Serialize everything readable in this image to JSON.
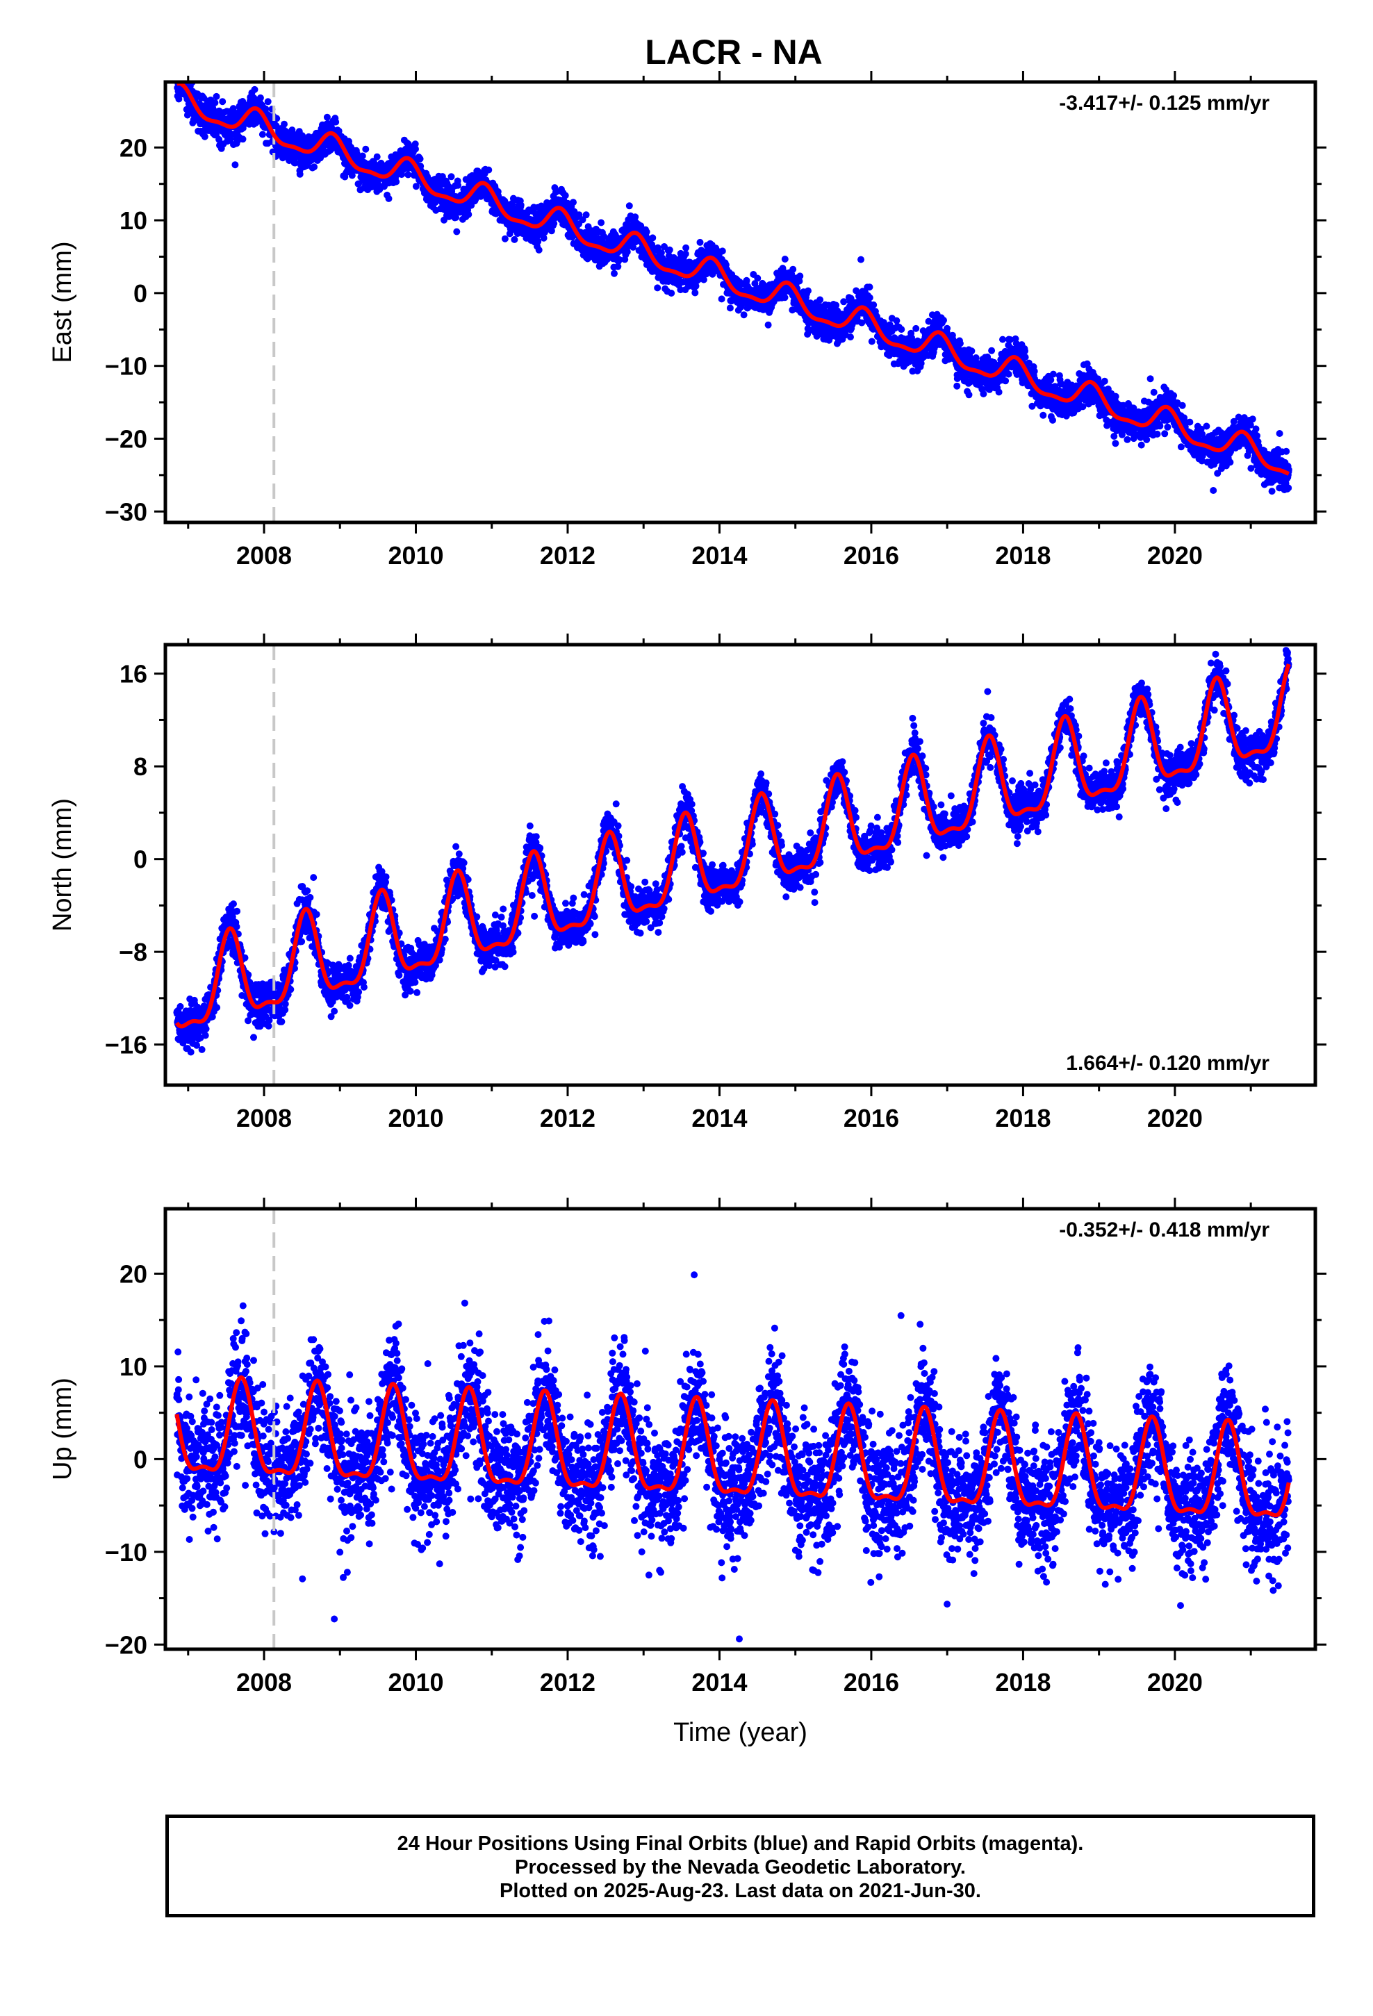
{
  "title": "LACR - NA",
  "chart_data": [
    {
      "type": "scatter",
      "id": "east",
      "ylabel": "East (mm)",
      "xlabel": "",
      "xlim": [
        2006.7,
        2021.85
      ],
      "ylim": [
        -31.5,
        29
      ],
      "xticks": [
        2008,
        2010,
        2012,
        2014,
        2016,
        2018,
        2020
      ],
      "yticks": [
        -30,
        -20,
        -10,
        0,
        10,
        20
      ],
      "rate_text": "-3.417+/- 0.125 mm/yr",
      "rate_position": "top-right",
      "data_start": 2006.85,
      "data_end": 2021.5,
      "offset_line_x": 2008.13,
      "model": {
        "intercept": 26.5,
        "slope": -3.417,
        "annual_amp": 1.8,
        "annual_phase_peak": 0.9,
        "noise": 1.2
      },
      "series": [
        {
          "name": "",
          "kind": "points",
          "color": "#0000ff"
        },
        {
          "name": "",
          "kind": "line",
          "color": "#ff0000"
        }
      ]
    },
    {
      "type": "scatter",
      "id": "north",
      "ylabel": "North (mm)",
      "xlabel": "",
      "xlim": [
        2006.7,
        2021.85
      ],
      "ylim": [
        -19.5,
        18.5
      ],
      "xticks": [
        2008,
        2010,
        2012,
        2014,
        2016,
        2018,
        2020
      ],
      "yticks": [
        -16,
        -8,
        0,
        8,
        16
      ],
      "rate_text": "1.664+/- 0.120 mm/yr",
      "rate_position": "bottom-right",
      "data_start": 2006.85,
      "data_end": 2021.5,
      "offset_line_x": 2008.13,
      "model": {
        "intercept": -12.0,
        "slope": 1.664,
        "annual_amp": 3.6,
        "annual_phase_peak": 0.55,
        "noise": 0.9
      },
      "series": [
        {
          "name": "",
          "kind": "points",
          "color": "#0000ff"
        },
        {
          "name": "",
          "kind": "line",
          "color": "#ff0000"
        }
      ]
    },
    {
      "type": "scatter",
      "id": "up",
      "ylabel": "Up (mm)",
      "xlabel": "Time (year)",
      "xlim": [
        2006.7,
        2021.85
      ],
      "ylim": [
        -20.5,
        27
      ],
      "xticks": [
        2008,
        2010,
        2012,
        2014,
        2016,
        2018,
        2020
      ],
      "yticks": [
        -20,
        -10,
        0,
        10,
        20
      ],
      "rate_text": "-0.352+/- 0.418 mm/yr",
      "rate_position": "top-right",
      "data_start": 2006.85,
      "data_end": 2021.5,
      "offset_line_x": 2008.13,
      "model": {
        "intercept": 2.5,
        "slope": -0.352,
        "annual_amp": 4.9,
        "annual_phase_peak": 0.7,
        "noise": 3.2
      },
      "series": [
        {
          "name": "",
          "kind": "points",
          "color": "#0000ff"
        },
        {
          "name": "",
          "kind": "line",
          "color": "#ff0000"
        }
      ]
    }
  ],
  "footer": {
    "line1": "24 Hour Positions Using Final Orbits (blue) and Rapid Orbits (magenta).",
    "line2": "Processed by the Nevada Geodetic Laboratory.",
    "line3": "Plotted on 2025-Aug-23. Last data on 2021-Jun-30."
  }
}
